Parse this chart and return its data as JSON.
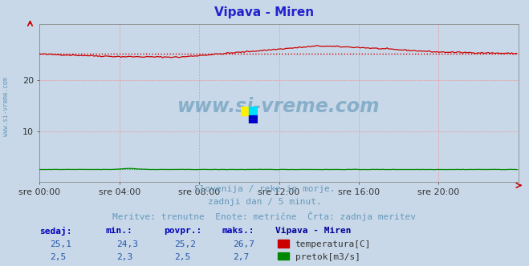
{
  "title": "Vipava - Miren",
  "title_color": "#2222cc",
  "bg_color": "#c8d8e8",
  "plot_bg_color": "#c8d8e8",
  "xlabel_ticks": [
    "sre 00:00",
    "sre 04:00",
    "sre 08:00",
    "sre 12:00",
    "sre 16:00",
    "sre 20:00"
  ],
  "ylabel_ticks": [
    10,
    20
  ],
  "ylim": [
    0,
    31
  ],
  "xlim_max": 288,
  "grid_color": "#ee9999",
  "temp_color": "#cc0000",
  "flow_color": "#008800",
  "avg_temp_color": "#cc0000",
  "avg_flow_color": "#008800",
  "watermark_text": "www.si-vreme.com",
  "watermark_color": "#6699bb",
  "subtitle1": "Slovenija / reke in morje.",
  "subtitle2": "zadnji dan / 5 minut.",
  "subtitle3": "Meritve: trenutne  Enote: metrične  Črta: zadnja meritev",
  "subtitle_color": "#6699bb",
  "legend_header": "Vipava - Miren",
  "legend_label1": "temperatura[C]",
  "legend_label2": "pretok[m3/s]",
  "legend_header_color": "#000099",
  "legend_text_color": "#333333",
  "stats_label_color": "#0000bb",
  "stats_value_color": "#2255aa",
  "sedaj_label": "sedaj:",
  "min_label": "min.:",
  "povpr_label": "povpr.:",
  "maks_label": "maks.:",
  "temp_sedaj": 25.1,
  "temp_min": 24.3,
  "temp_povpr": 25.2,
  "temp_maks": 26.7,
  "flow_sedaj": 2.5,
  "flow_min": 2.3,
  "flow_povpr": 2.5,
  "flow_maks": 2.7,
  "n_points": 288,
  "left_label": "www.si-vreme.com",
  "left_label_color": "#6699bb"
}
